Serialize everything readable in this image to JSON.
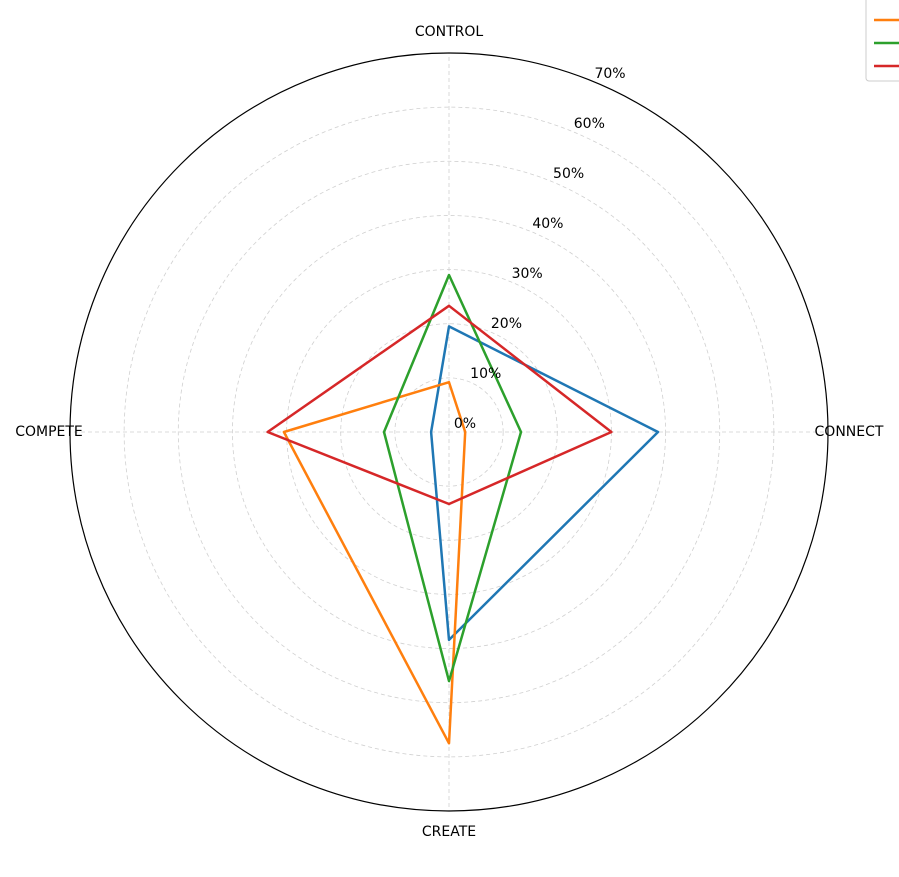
{
  "chart_data": {
    "type": "radar",
    "categories": [
      "CONTROL",
      "CONNECT",
      "CREATE",
      "COMPETE"
    ],
    "series": [
      {
        "color": "#1f77b4",
        "values": [
          19.5,
          38.6,
          38.4,
          3.3
        ]
      },
      {
        "color": "#ff7f0e",
        "values": [
          9.2,
          3,
          57.5,
          30.5
        ]
      },
      {
        "color": "#2ca02c",
        "values": [
          29,
          13.3,
          46,
          12
        ]
      },
      {
        "color": "#d62728",
        "values": [
          23.3,
          30,
          13.3,
          33.5
        ]
      }
    ],
    "ylim": [
      0,
      70
    ],
    "yticks": [
      {
        "value": 0,
        "label": "0%"
      },
      {
        "value": 10,
        "label": "10%"
      },
      {
        "value": 20,
        "label": "20%"
      },
      {
        "value": 30,
        "label": "30%"
      },
      {
        "value": 40,
        "label": "40%"
      },
      {
        "value": 50,
        "label": "50%"
      },
      {
        "value": 60,
        "label": "60%"
      },
      {
        "value": 70,
        "label": "70%"
      }
    ],
    "grid": true
  }
}
